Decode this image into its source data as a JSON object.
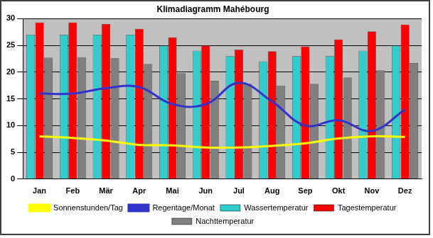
{
  "chart_data": {
    "type": "bar",
    "title": "Klimadiagramm Mahébourg",
    "categories": [
      "Jan",
      "Feb",
      "Mär",
      "Apr",
      "Mai",
      "Jun",
      "Jul",
      "Aug",
      "Sep",
      "Okt",
      "Nov",
      "Dez"
    ],
    "series": [
      {
        "name": "Wassertemperatur",
        "color": "#33cccc",
        "values": [
          27,
          27,
          27,
          27,
          25,
          24,
          23,
          22,
          23,
          23,
          24,
          25
        ]
      },
      {
        "name": "Tagestemperatur",
        "color": "#ff0000",
        "values": [
          29.3,
          29.3,
          29,
          28.1,
          26.5,
          25,
          24.2,
          23.9,
          24.8,
          26.1,
          27.6,
          28.9
        ]
      },
      {
        "name": "Nachttemperatur",
        "color": "#808080",
        "values": [
          22.7,
          22.8,
          22.6,
          21.5,
          19.8,
          18.4,
          17.8,
          17.5,
          17.8,
          19,
          20.3,
          21.7
        ]
      },
      {
        "name": "Sonnenstunden/Tag",
        "color": "#ffff00",
        "type": "line",
        "values": [
          8,
          7.7,
          7.2,
          6.4,
          6.3,
          5.9,
          5.9,
          6.2,
          6.7,
          7.6,
          8,
          7.9
        ]
      },
      {
        "name": "Regentage/Monat",
        "color": "#3333cc",
        "type": "line",
        "values": [
          16,
          16,
          17,
          17.2,
          14,
          14,
          18,
          14.5,
          10,
          11,
          9,
          13
        ]
      }
    ],
    "ylim": [
      0,
      30
    ],
    "yticks": [
      0,
      5,
      10,
      15,
      20,
      25,
      30
    ],
    "grid": true,
    "legend": "bottom"
  }
}
